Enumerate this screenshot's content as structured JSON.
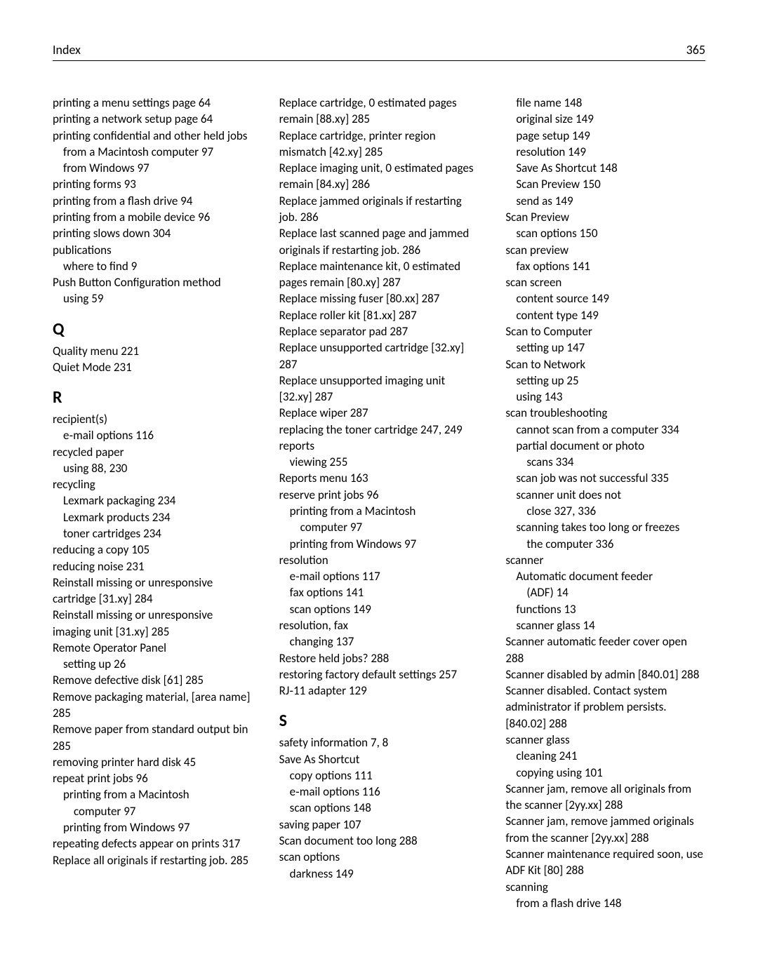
{
  "header": {
    "title": "Index",
    "page_number": "365"
  },
  "typography": {
    "body_fontsize": 17,
    "heading_fontsize": 24,
    "header_fontsize": 18,
    "line_height": 1.37,
    "text_color": "#000000",
    "background_color": "#ffffff"
  },
  "columns": [
    {
      "items": [
        {
          "type": "entry",
          "indent": 0,
          "text": "printing a menu settings page  64"
        },
        {
          "type": "entry",
          "indent": 0,
          "text": "printing a network setup page  64"
        },
        {
          "type": "entry",
          "indent": 0,
          "text": "printing confidential and other held jobs"
        },
        {
          "type": "entry",
          "indent": 1,
          "text": "from a Macintosh computer  97"
        },
        {
          "type": "entry",
          "indent": 1,
          "text": "from Windows  97"
        },
        {
          "type": "entry",
          "indent": 0,
          "text": "printing forms  93"
        },
        {
          "type": "entry",
          "indent": 0,
          "text": "printing from a flash drive  94"
        },
        {
          "type": "entry",
          "indent": 0,
          "text": "printing from a mobile device  96"
        },
        {
          "type": "entry",
          "indent": 0,
          "text": "printing slows down  304"
        },
        {
          "type": "entry",
          "indent": 0,
          "text": "publications"
        },
        {
          "type": "entry",
          "indent": 1,
          "text": "where to find  9"
        },
        {
          "type": "entry",
          "indent": 0,
          "text": "Push Button Configuration method"
        },
        {
          "type": "entry",
          "indent": 1,
          "text": "using  59"
        },
        {
          "type": "letter",
          "text": "Q"
        },
        {
          "type": "entry",
          "indent": 0,
          "text": "Quality menu  221"
        },
        {
          "type": "entry",
          "indent": 0,
          "text": "Quiet Mode  231"
        },
        {
          "type": "letter",
          "text": "R"
        },
        {
          "type": "entry",
          "indent": 0,
          "text": "recipient(s)"
        },
        {
          "type": "entry",
          "indent": 1,
          "text": "e‑mail options  116"
        },
        {
          "type": "entry",
          "indent": 0,
          "text": "recycled paper"
        },
        {
          "type": "entry",
          "indent": 1,
          "text": "using  88, 230"
        },
        {
          "type": "entry",
          "indent": 0,
          "text": "recycling"
        },
        {
          "type": "entry",
          "indent": 1,
          "text": "Lexmark packaging  234"
        },
        {
          "type": "entry",
          "indent": 1,
          "text": "Lexmark products  234"
        },
        {
          "type": "entry",
          "indent": 1,
          "text": "toner cartridges  234"
        },
        {
          "type": "entry",
          "indent": 0,
          "text": "reducing a copy  105"
        },
        {
          "type": "entry",
          "indent": 0,
          "text": "reducing noise  231"
        },
        {
          "type": "entry",
          "indent": 0,
          "text": "Reinstall missing or unresponsive cartridge [31.xy]  284"
        },
        {
          "type": "entry",
          "indent": 0,
          "text": "Reinstall missing or unresponsive imaging unit [31.xy]  285"
        },
        {
          "type": "entry",
          "indent": 0,
          "text": "Remote Operator Panel"
        },
        {
          "type": "entry",
          "indent": 1,
          "text": "setting up  26"
        },
        {
          "type": "entry",
          "indent": 0,
          "text": "Remove defective disk [61]  285"
        },
        {
          "type": "entry",
          "indent": 0,
          "text": "Remove packaging material, [area name]  285"
        },
        {
          "type": "entry",
          "indent": 0,
          "text": "Remove paper from standard output bin  285"
        },
        {
          "type": "entry",
          "indent": 0,
          "text": "removing printer hard disk  45"
        },
        {
          "type": "entry",
          "indent": 0,
          "text": "repeat print jobs  96"
        },
        {
          "type": "entry",
          "indent": 1,
          "text": "printing from a Macintosh"
        },
        {
          "type": "entry",
          "indent": 2,
          "text": "computer  97"
        },
        {
          "type": "entry",
          "indent": 1,
          "text": "printing from Windows  97"
        },
        {
          "type": "entry",
          "indent": 0,
          "text": "repeating defects appear on prints  317"
        },
        {
          "type": "entry",
          "indent": 0,
          "text": "Replace all originals if restarting job.  285"
        }
      ]
    },
    {
      "items": [
        {
          "type": "entry",
          "indent": 0,
          "text": "Replace cartridge, 0 estimated pages remain [88.xy]  285"
        },
        {
          "type": "entry",
          "indent": 0,
          "text": "Replace cartridge, printer region mismatch [42.xy]  285"
        },
        {
          "type": "entry",
          "indent": 0,
          "text": "Replace imaging unit, 0 estimated pages remain [84.xy]  286"
        },
        {
          "type": "entry",
          "indent": 0,
          "text": "Replace jammed originals if restarting job.  286"
        },
        {
          "type": "entry",
          "indent": 0,
          "text": "Replace last scanned page and jammed originals if restarting job.  286"
        },
        {
          "type": "entry",
          "indent": 0,
          "text": "Replace maintenance kit, 0 estimated pages remain [80.xy]  287"
        },
        {
          "type": "entry",
          "indent": 0,
          "text": "Replace missing fuser [80.xx]  287"
        },
        {
          "type": "entry",
          "indent": 0,
          "text": "Replace roller kit [81.xx]  287"
        },
        {
          "type": "entry",
          "indent": 0,
          "text": "Replace separator pad  287"
        },
        {
          "type": "entry",
          "indent": 0,
          "text": "Replace unsupported cartridge [32.xy]  287"
        },
        {
          "type": "entry",
          "indent": 0,
          "text": "Replace unsupported imaging unit [32.xy]  287"
        },
        {
          "type": "entry",
          "indent": 0,
          "text": "Replace wiper  287"
        },
        {
          "type": "entry",
          "indent": 0,
          "text": "replacing the toner cartridge  247, 249"
        },
        {
          "type": "entry",
          "indent": 0,
          "text": "reports"
        },
        {
          "type": "entry",
          "indent": 1,
          "text": "viewing  255"
        },
        {
          "type": "entry",
          "indent": 0,
          "text": "Reports menu  163"
        },
        {
          "type": "entry",
          "indent": 0,
          "text": "reserve print jobs  96"
        },
        {
          "type": "entry",
          "indent": 1,
          "text": "printing from a Macintosh"
        },
        {
          "type": "entry",
          "indent": 2,
          "text": "computer  97"
        },
        {
          "type": "entry",
          "indent": 1,
          "text": "printing from Windows  97"
        },
        {
          "type": "entry",
          "indent": 0,
          "text": "resolution"
        },
        {
          "type": "entry",
          "indent": 1,
          "text": "e‑mail options  117"
        },
        {
          "type": "entry",
          "indent": 1,
          "text": "fax options  141"
        },
        {
          "type": "entry",
          "indent": 1,
          "text": "scan options  149"
        },
        {
          "type": "entry",
          "indent": 0,
          "text": "resolution, fax"
        },
        {
          "type": "entry",
          "indent": 1,
          "text": "changing  137"
        },
        {
          "type": "entry",
          "indent": 0,
          "text": "Restore held jobs?  288"
        },
        {
          "type": "entry",
          "indent": 0,
          "text": "restoring factory default settings  257"
        },
        {
          "type": "entry",
          "indent": 0,
          "text": "RJ‑11 adapter  129"
        },
        {
          "type": "letter",
          "text": "S"
        },
        {
          "type": "entry",
          "indent": 0,
          "text": "safety information  7, 8"
        },
        {
          "type": "entry",
          "indent": 0,
          "text": "Save As Shortcut"
        },
        {
          "type": "entry",
          "indent": 1,
          "text": "copy options  111"
        },
        {
          "type": "entry",
          "indent": 1,
          "text": "e‑mail options  116"
        },
        {
          "type": "entry",
          "indent": 1,
          "text": "scan options  148"
        },
        {
          "type": "entry",
          "indent": 0,
          "text": "saving paper  107"
        },
        {
          "type": "entry",
          "indent": 0,
          "text": "Scan document too long  288"
        },
        {
          "type": "entry",
          "indent": 0,
          "text": "scan options"
        },
        {
          "type": "entry",
          "indent": 1,
          "text": "darkness  149"
        }
      ]
    },
    {
      "items": [
        {
          "type": "entry",
          "indent": 1,
          "text": "file name  148"
        },
        {
          "type": "entry",
          "indent": 1,
          "text": "original size  149"
        },
        {
          "type": "entry",
          "indent": 1,
          "text": "page setup  149"
        },
        {
          "type": "entry",
          "indent": 1,
          "text": "resolution  149"
        },
        {
          "type": "entry",
          "indent": 1,
          "text": "Save As Shortcut  148"
        },
        {
          "type": "entry",
          "indent": 1,
          "text": "Scan Preview  150"
        },
        {
          "type": "entry",
          "indent": 1,
          "text": "send as  149"
        },
        {
          "type": "entry",
          "indent": 0,
          "text": "Scan Preview"
        },
        {
          "type": "entry",
          "indent": 1,
          "text": "scan options  150"
        },
        {
          "type": "entry",
          "indent": 0,
          "text": "scan preview"
        },
        {
          "type": "entry",
          "indent": 1,
          "text": "fax options  141"
        },
        {
          "type": "entry",
          "indent": 0,
          "text": "scan screen"
        },
        {
          "type": "entry",
          "indent": 1,
          "text": "content source  149"
        },
        {
          "type": "entry",
          "indent": 1,
          "text": "content type  149"
        },
        {
          "type": "entry",
          "indent": 0,
          "text": "Scan to Computer"
        },
        {
          "type": "entry",
          "indent": 1,
          "text": "setting up  147"
        },
        {
          "type": "entry",
          "indent": 0,
          "text": "Scan to Network"
        },
        {
          "type": "entry",
          "indent": 1,
          "text": "setting up  25"
        },
        {
          "type": "entry",
          "indent": 1,
          "text": "using  143"
        },
        {
          "type": "entry",
          "indent": 0,
          "text": "scan troubleshooting"
        },
        {
          "type": "entry",
          "indent": 1,
          "text": "cannot scan from a computer  334"
        },
        {
          "type": "entry",
          "indent": 1,
          "text": "partial document or photo"
        },
        {
          "type": "entry",
          "indent": 2,
          "text": "scans  334"
        },
        {
          "type": "entry",
          "indent": 1,
          "text": "scan job was not successful  335"
        },
        {
          "type": "entry",
          "indent": 1,
          "text": "scanner unit does not"
        },
        {
          "type": "entry",
          "indent": 2,
          "text": "close  327, 336"
        },
        {
          "type": "entry",
          "indent": 1,
          "text": "scanning takes too long or freezes"
        },
        {
          "type": "entry",
          "indent": 2,
          "text": "the computer  336"
        },
        {
          "type": "entry",
          "indent": 0,
          "text": "scanner"
        },
        {
          "type": "entry",
          "indent": 1,
          "text": "Automatic document feeder"
        },
        {
          "type": "entry",
          "indent": 2,
          "text": "(ADF)  14"
        },
        {
          "type": "entry",
          "indent": 1,
          "text": "functions  13"
        },
        {
          "type": "entry",
          "indent": 1,
          "text": "scanner glass  14"
        },
        {
          "type": "entry",
          "indent": 0,
          "text": "Scanner automatic feeder cover open  288"
        },
        {
          "type": "entry",
          "indent": 0,
          "text": "Scanner disabled by admin [840.01]  288"
        },
        {
          "type": "entry",
          "indent": 0,
          "text": "Scanner disabled. Contact system administrator if problem persists. [840.02]  288"
        },
        {
          "type": "entry",
          "indent": 0,
          "text": "scanner glass"
        },
        {
          "type": "entry",
          "indent": 1,
          "text": "cleaning  241"
        },
        {
          "type": "entry",
          "indent": 1,
          "text": "copying using  101"
        },
        {
          "type": "entry",
          "indent": 0,
          "text": "Scanner jam, remove all originals from the scanner [2yy.xx]  288"
        },
        {
          "type": "entry",
          "indent": 0,
          "text": "Scanner jam, remove jammed originals from the scanner [2yy.xx]  288"
        },
        {
          "type": "entry",
          "indent": 0,
          "text": "Scanner maintenance required soon, use ADF Kit [80]  288"
        },
        {
          "type": "entry",
          "indent": 0,
          "text": "scanning"
        },
        {
          "type": "entry",
          "indent": 1,
          "text": "from a flash drive  148"
        }
      ]
    }
  ]
}
